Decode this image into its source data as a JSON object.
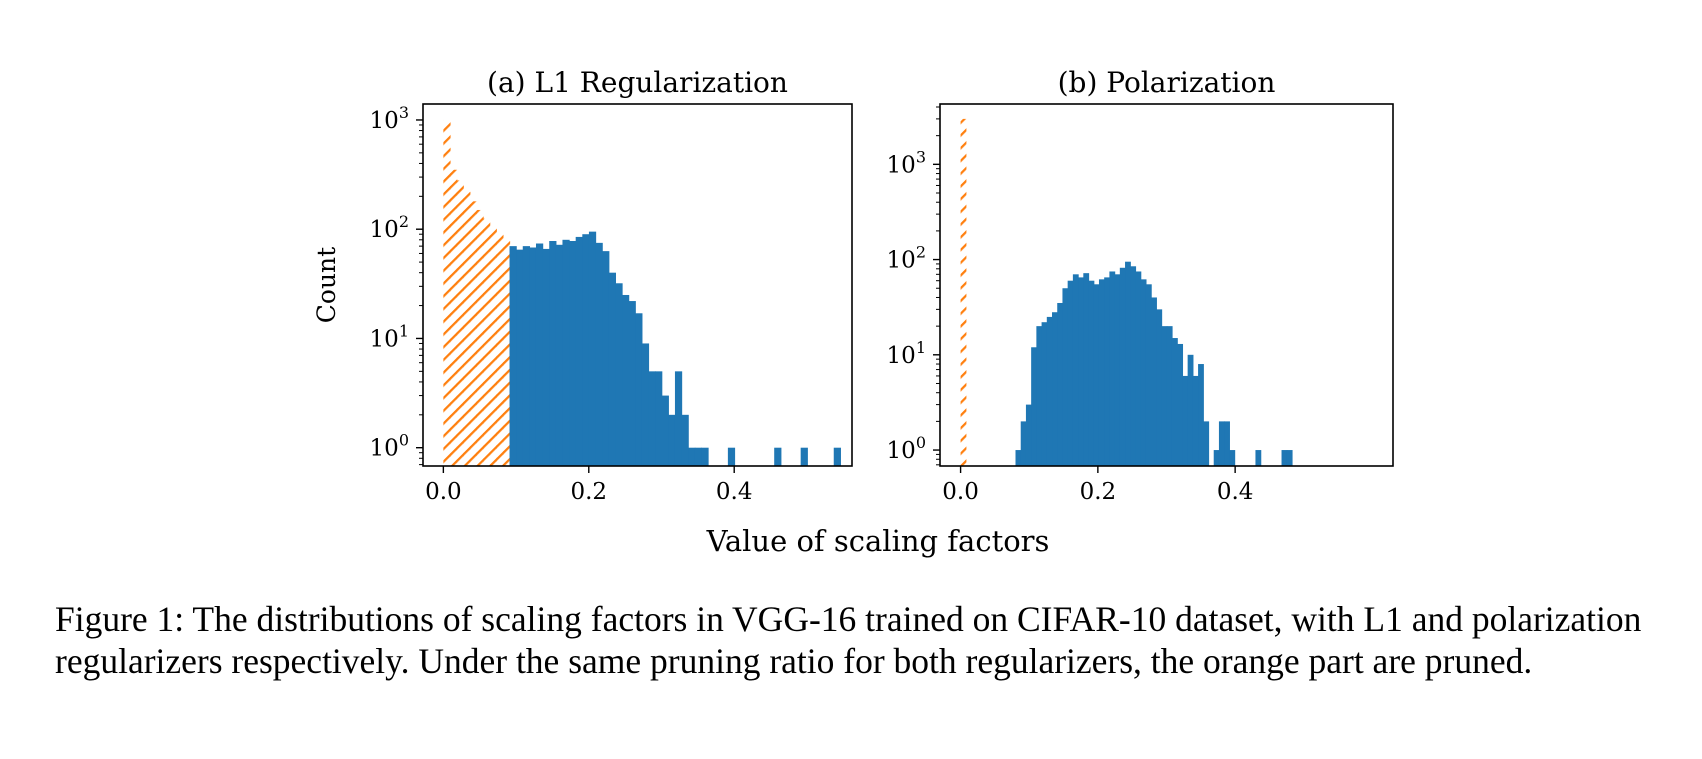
{
  "figure": {
    "xlabel": "Value of scaling factors",
    "caption": "Figure 1: The distributions of scaling factors in VGG-16 trained on CIFAR-10 dataset, with L1 and polarization regularizers respectively. Under the same pruning ratio for both regularizers, the orange part are pruned."
  },
  "colors": {
    "kept": "#1f77b4",
    "pruned": "#ff7f0e"
  },
  "chart_data": [
    {
      "type": "bar",
      "title": "(a) L1 Regularization",
      "ylabel": "Count",
      "yscale": "log",
      "xlim": [
        -0.028,
        0.562
      ],
      "ylim": [
        0.68,
        1400
      ],
      "xticks": [
        0.0,
        0.2,
        0.4
      ],
      "xtick_labels": [
        "0.0",
        "0.2",
        "0.4"
      ],
      "yticks": [
        1,
        10,
        100,
        1000
      ],
      "ytick_labels": [
        "10",
        "10",
        "10",
        "10"
      ],
      "ytick_exponents": [
        "0",
        "1",
        "2",
        "3"
      ],
      "bin_width": 0.0091,
      "series": [
        {
          "role": "pruned",
          "style": "hatched",
          "x": [
            0.0,
            0.0091,
            0.0182,
            0.0273,
            0.0364,
            0.0455,
            0.0546,
            0.0637,
            0.0728,
            0.0819
          ],
          "values": [
            1000,
            350,
            280,
            220,
            180,
            150,
            125,
            105,
            90,
            78
          ]
        },
        {
          "role": "kept",
          "style": "solid",
          "x": [
            0.091,
            0.1001,
            0.1092,
            0.1183,
            0.1274,
            0.1365,
            0.1456,
            0.1547,
            0.1638,
            0.1729,
            0.182,
            0.1911,
            0.2002,
            0.2093,
            0.2184,
            0.2275,
            0.2366,
            0.2457,
            0.2548,
            0.2639,
            0.273,
            0.2821,
            0.2912,
            0.3003,
            0.3094,
            0.3185,
            0.3276,
            0.3367,
            0.3458,
            0.3549,
            0.3913,
            0.455,
            0.4914,
            0.5369
          ],
          "values": [
            70,
            65,
            70,
            68,
            74,
            66,
            78,
            72,
            80,
            78,
            85,
            90,
            95,
            75,
            63,
            40,
            32,
            25,
            22,
            17,
            9,
            5,
            5,
            3,
            2,
            5,
            2,
            1,
            1,
            1,
            1,
            1,
            1,
            1
          ]
        }
      ]
    },
    {
      "type": "bar",
      "title": "(b) Polarization",
      "ylabel": "",
      "yscale": "log",
      "xlim": [
        -0.03,
        0.63
      ],
      "ylim": [
        0.68,
        4300
      ],
      "xticks": [
        0.0,
        0.2,
        0.4
      ],
      "xtick_labels": [
        "0.0",
        "0.2",
        "0.4"
      ],
      "yticks": [
        1,
        10,
        100,
        1000
      ],
      "ytick_labels": [
        "10",
        "10",
        "10",
        "10"
      ],
      "ytick_exponents": [
        "0",
        "1",
        "2",
        "3"
      ],
      "bin_width": 0.0076,
      "series": [
        {
          "role": "pruned",
          "style": "hatched",
          "x": [
            0.0
          ],
          "values": [
            3000
          ]
        },
        {
          "role": "kept",
          "style": "solid",
          "x": [
            0.08,
            0.0876,
            0.0952,
            0.1028,
            0.1104,
            0.118,
            0.1256,
            0.1332,
            0.1408,
            0.1484,
            0.156,
            0.1636,
            0.1712,
            0.1788,
            0.1864,
            0.194,
            0.2016,
            0.2092,
            0.2168,
            0.2244,
            0.232,
            0.2396,
            0.2472,
            0.2548,
            0.2624,
            0.27,
            0.2776,
            0.2852,
            0.2928,
            0.3004,
            0.308,
            0.3156,
            0.3232,
            0.3308,
            0.3384,
            0.346,
            0.3536,
            0.3688,
            0.3764,
            0.384,
            0.3916,
            0.4296,
            0.4676,
            0.4752
          ],
          "values": [
            1,
            2,
            3,
            12,
            20,
            22,
            25,
            28,
            35,
            50,
            60,
            70,
            65,
            72,
            60,
            55,
            62,
            65,
            75,
            70,
            82,
            95,
            85,
            75,
            62,
            55,
            40,
            30,
            20,
            20,
            15,
            13,
            6,
            10,
            6,
            8,
            2,
            1,
            2,
            2,
            1,
            1,
            1,
            1
          ]
        }
      ]
    }
  ]
}
